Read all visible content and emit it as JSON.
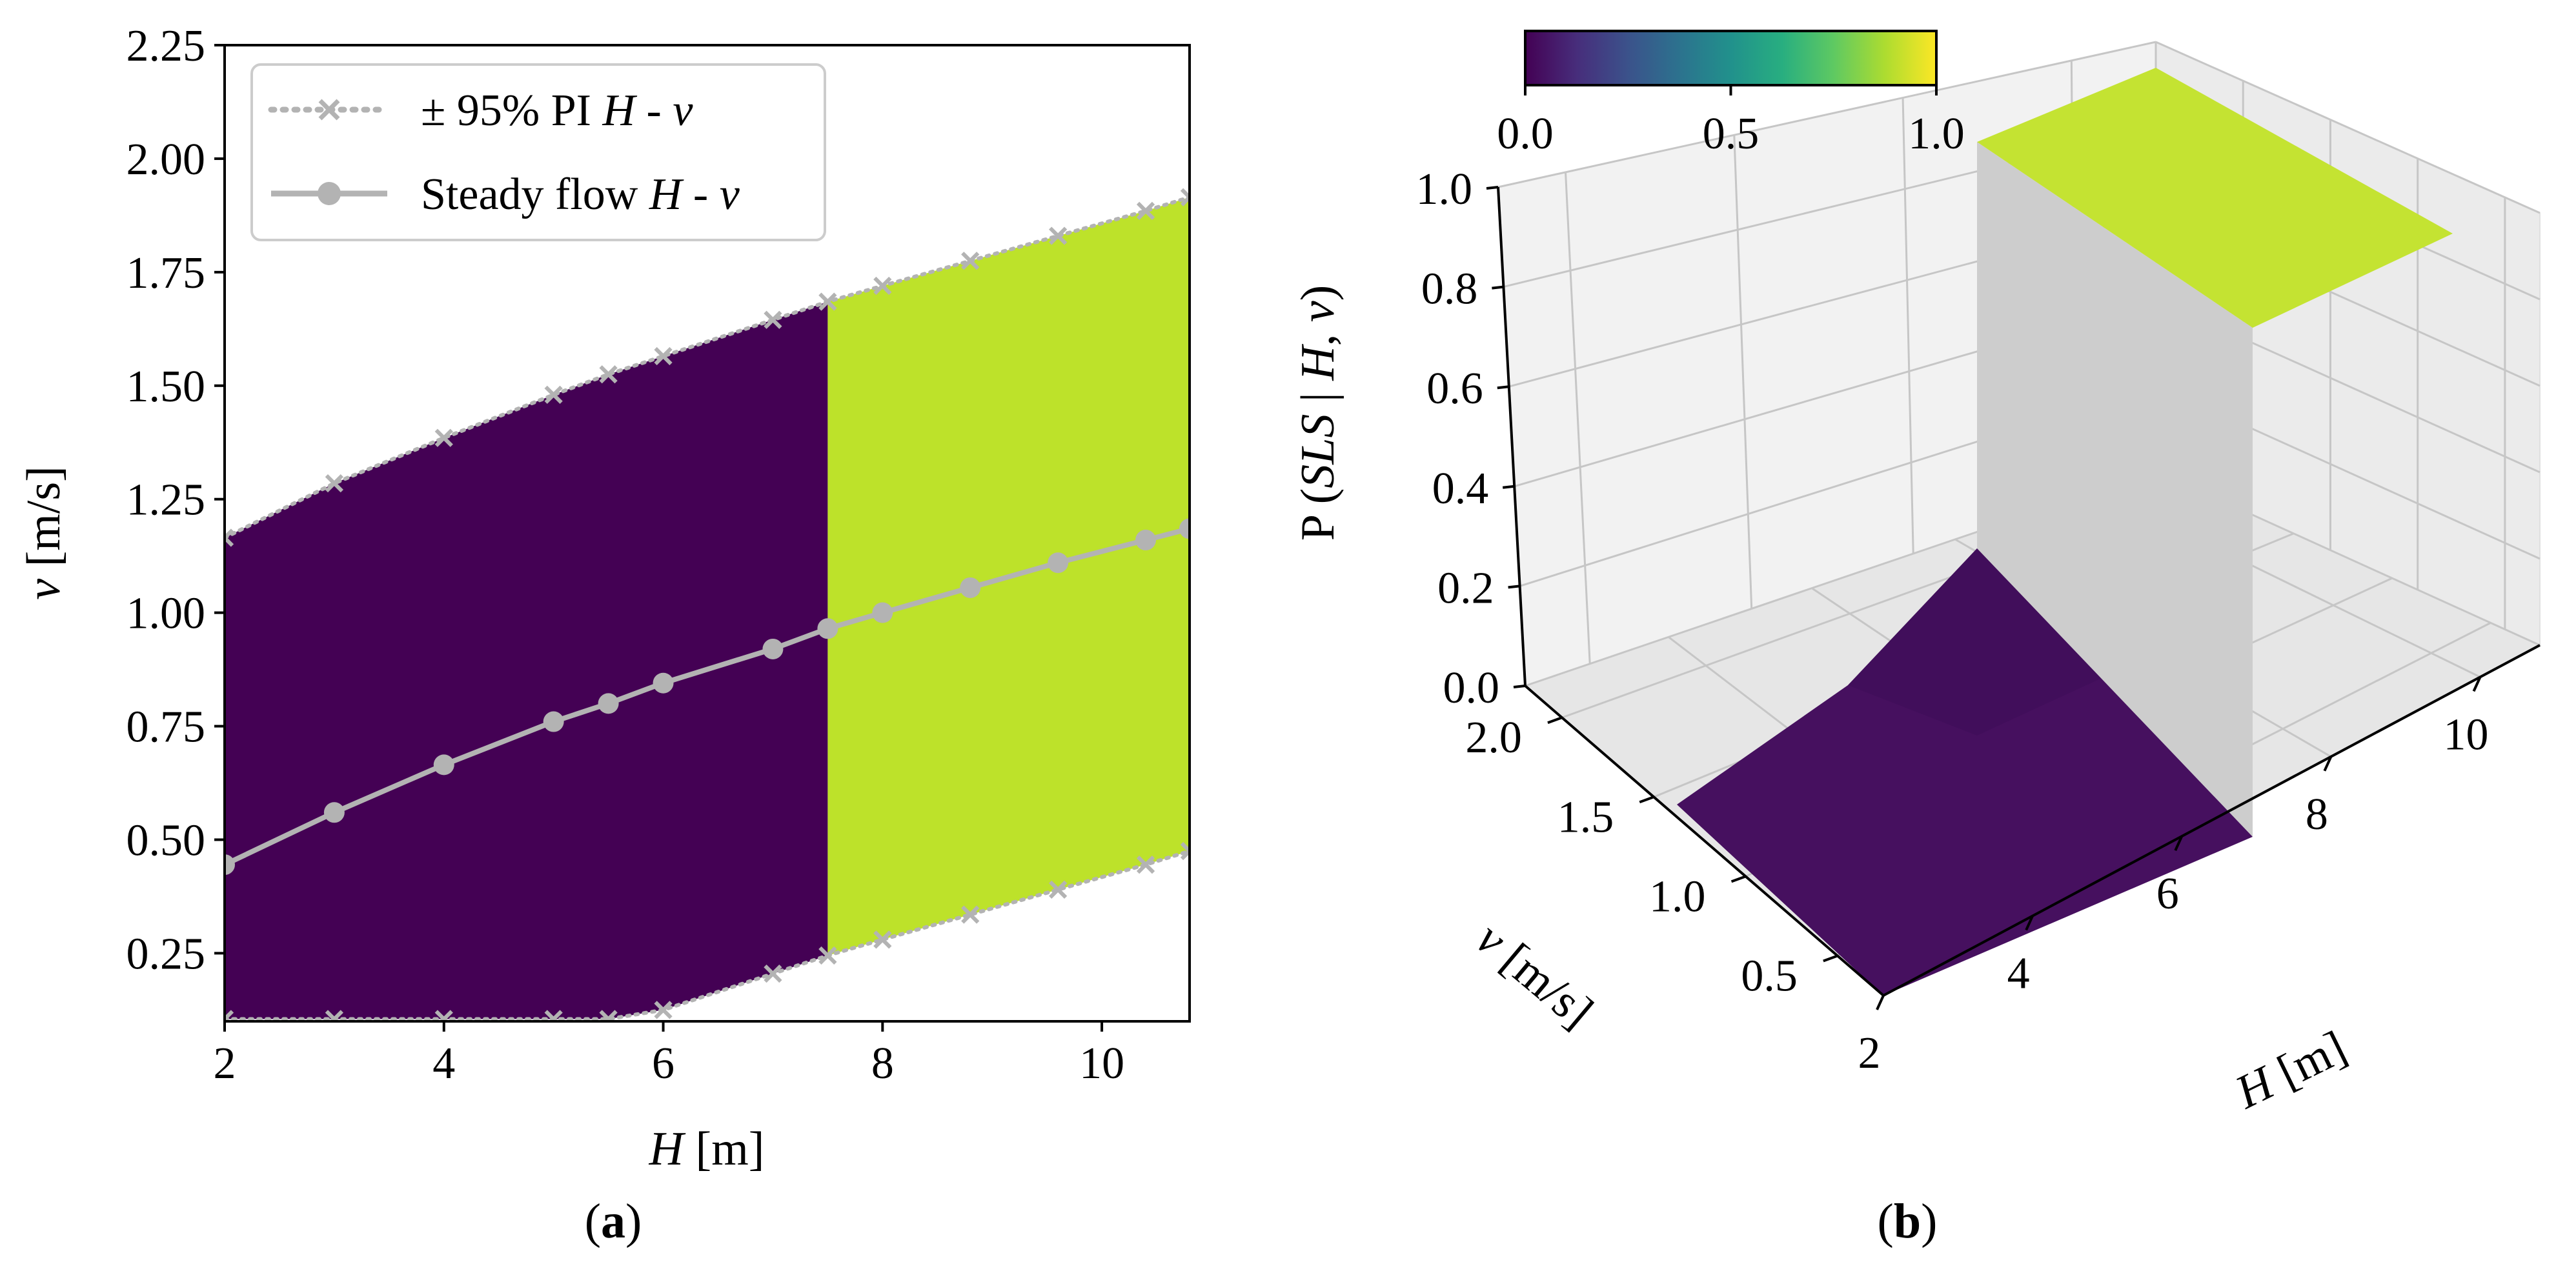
{
  "panel_labels": {
    "a": "a",
    "b": "b"
  },
  "chart_data": [
    {
      "panel": "a",
      "type": "area",
      "xlabel_var": "H",
      "xlabel_unit": " [m]",
      "ylabel_var": "v",
      "ylabel_unit": " [m/s]",
      "xlim": [
        2,
        10.8
      ],
      "ylim": [
        0.1,
        2.25
      ],
      "xticks": [
        2,
        4,
        6,
        8,
        10
      ],
      "xtick_labels": [
        "2",
        "4",
        "6",
        "8",
        "10"
      ],
      "yticks": [
        0.25,
        0.5,
        0.75,
        1.0,
        1.25,
        1.5,
        1.75,
        2.0,
        2.25
      ],
      "ytick_labels": [
        "0.25",
        "0.50",
        "0.75",
        "1.00",
        "1.25",
        "1.50",
        "1.75",
        "2.00",
        "2.25"
      ],
      "threshold_H": 7.5,
      "region_colors": {
        "below_threshold": "#440154",
        "above_threshold": "#bde22a"
      },
      "legend": {
        "position": "top-left",
        "entries": [
          {
            "pre": "± 95% PI ",
            "var1": "H",
            "mid": " - ",
            "var2": "v",
            "style": "dotted-x",
            "color": "#b3b3b3"
          },
          {
            "pre": "Steady flow ",
            "var1": "H",
            "mid": " - ",
            "var2": "v",
            "style": "solid-circle",
            "color": "#b3b3b3"
          }
        ]
      },
      "series": [
        {
          "name": "Steady flow H - v",
          "x": [
            2,
            3,
            4,
            5,
            5.5,
            6,
            7,
            7.5,
            8,
            8.8,
            9.6,
            10.4,
            10.8
          ],
          "y": [
            0.445,
            0.56,
            0.665,
            0.76,
            0.8,
            0.845,
            0.92,
            0.965,
            1.0,
            1.055,
            1.11,
            1.16,
            1.185
          ]
        },
        {
          "name": "+95% PI",
          "x": [
            2,
            3,
            4,
            5,
            5.5,
            6,
            7,
            7.5,
            8,
            8.8,
            9.6,
            10.4,
            10.8
          ],
          "y": [
            1.165,
            1.285,
            1.385,
            1.48,
            1.525,
            1.565,
            1.645,
            1.685,
            1.72,
            1.775,
            1.83,
            1.885,
            1.915
          ]
        },
        {
          "name": "-95% PI",
          "x": [
            2,
            3,
            4,
            5,
            5.5,
            6,
            7,
            7.5,
            8,
            8.8,
            9.6,
            10.4,
            10.8
          ],
          "y": [
            0.105,
            0.105,
            0.105,
            0.105,
            0.105,
            0.125,
            0.205,
            0.245,
            0.28,
            0.335,
            0.39,
            0.445,
            0.475
          ]
        }
      ]
    },
    {
      "panel": "b",
      "type": "surface",
      "xlabel_var": "H",
      "xlabel_unit": " [m]",
      "ylabel_var": "v",
      "ylabel_unit": " [m/s]",
      "zlabel_pre": "P (",
      "zlabel_var1": "SLS",
      "zlabel_mid": " | ",
      "zlabel_var2": "H",
      "zlabel_comma": ", ",
      "zlabel_var3": "v",
      "zlabel_post": ")",
      "xlim": [
        2,
        10.8
      ],
      "ylim": [
        0.25,
        2.2
      ],
      "zlim": [
        0,
        1
      ],
      "xticks": [
        2,
        4,
        6,
        8,
        10
      ],
      "xtick_labels": [
        "2",
        "4",
        "6",
        "8",
        "10"
      ],
      "yticks": [
        0.5,
        1.0,
        1.5,
        2.0
      ],
      "ytick_labels": [
        "0.5",
        "1.0",
        "1.5",
        "2.0"
      ],
      "zticks": [
        0,
        0.2,
        0.4,
        0.6,
        0.8,
        1.0
      ],
      "ztick_labels": [
        "0.0",
        "0.2",
        "0.4",
        "0.6",
        "0.8",
        "1.0"
      ],
      "threshold_H": 7.5,
      "low_surface_peak": 0.23,
      "colorbar": {
        "ticks": [
          0.0,
          0.5,
          1.0
        ],
        "tick_labels": [
          "0.0",
          "0.5",
          "1.0"
        ],
        "position": "top"
      },
      "colors": {
        "low": "#46105f",
        "high": "#c4e332",
        "wall": "#cdcdcd"
      }
    }
  ]
}
